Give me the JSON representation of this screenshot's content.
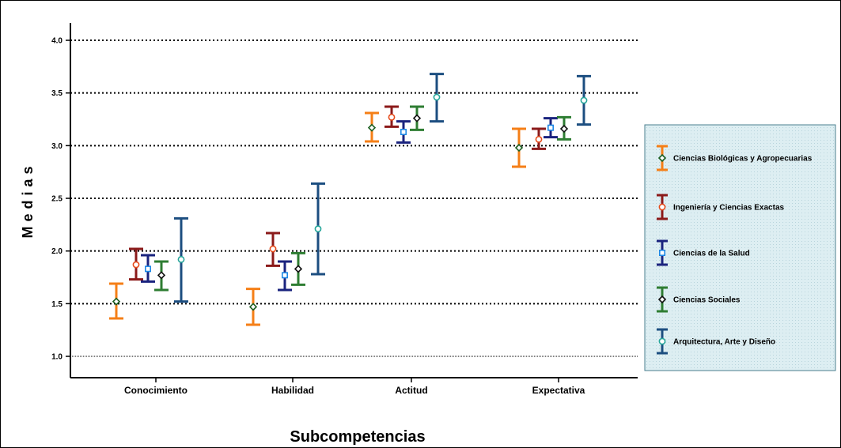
{
  "chart_data": {
    "type": "errorbar",
    "xlabel": "Subcompetencias",
    "ylabel": "Medias",
    "ylim": [
      1.0,
      4.1
    ],
    "yticks": [
      "1.0",
      "1.5",
      "2.0",
      "2.5",
      "3.0",
      "3.5",
      "4.0"
    ],
    "grid": "horizontal-dotted",
    "legend_position": "right",
    "categories": [
      "Conocimiento",
      "Habilidad",
      "Actitud",
      "Expectativa"
    ],
    "series": [
      {
        "name": "Ciencias Biológicas y Agropecuarias",
        "bar_color": "#f57f17",
        "marker": "diamond",
        "marker_color": "#1b5e20",
        "mean": [
          1.52,
          1.47,
          3.17,
          2.98
        ],
        "lower": [
          1.36,
          1.3,
          3.04,
          2.8
        ],
        "upper": [
          1.69,
          1.64,
          3.31,
          3.16
        ]
      },
      {
        "name": "Ingeniería y Ciencias Exactas",
        "bar_color": "#8b1a1a",
        "marker": "circle",
        "marker_color": "#e64a19",
        "mean": [
          1.87,
          2.02,
          3.27,
          3.06
        ],
        "lower": [
          1.73,
          1.86,
          3.18,
          2.97
        ],
        "upper": [
          2.02,
          2.17,
          3.37,
          3.16
        ]
      },
      {
        "name": "Ciencias de la Salud",
        "bar_color": "#1a237e",
        "marker": "square",
        "marker_color": "#1e88e5",
        "mean": [
          1.83,
          1.77,
          3.13,
          3.17
        ],
        "lower": [
          1.71,
          1.63,
          3.03,
          3.08
        ],
        "upper": [
          1.96,
          1.9,
          3.23,
          3.26
        ]
      },
      {
        "name": "Ciencias Sociales",
        "bar_color": "#2e7d32",
        "marker": "diamond",
        "marker_color": "#111111",
        "mean": [
          1.77,
          1.83,
          3.26,
          3.16
        ],
        "lower": [
          1.63,
          1.68,
          3.15,
          3.06
        ],
        "upper": [
          1.9,
          1.98,
          3.37,
          3.27
        ]
      },
      {
        "name": "Arquitectura, Arte y Diseño",
        "bar_color": "#1c4e80",
        "marker": "circle",
        "marker_color": "#26a69a",
        "mean": [
          1.92,
          2.21,
          3.46,
          3.43
        ],
        "lower": [
          1.52,
          1.78,
          3.23,
          3.2
        ],
        "upper": [
          2.31,
          2.64,
          3.68,
          3.66
        ]
      }
    ]
  }
}
